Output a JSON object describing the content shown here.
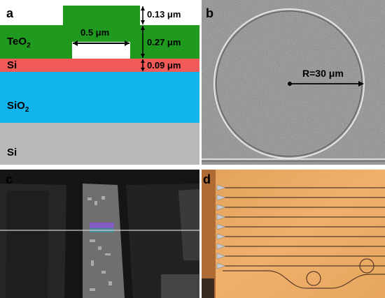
{
  "figure": {
    "panel_a": {
      "letter": "a",
      "layers": {
        "teo2": {
          "text": "TeO",
          "sub": "2",
          "color": "#1f9a1f"
        },
        "si_core": {
          "text": "Si",
          "color": "#f25a5a"
        },
        "sio2": {
          "text": "SiO",
          "sub": "2",
          "color": "#12b4ee"
        },
        "si_substrate": {
          "text": "Si",
          "color": "#b9b9b9"
        }
      },
      "dimensions": {
        "width": "0.5 μm",
        "t1": "0.13 μm",
        "t2": "0.27 μm",
        "t3": "0.09 μm"
      }
    },
    "panel_b": {
      "letter": "b",
      "radius_label": "R=30 μm"
    },
    "panel_c": {
      "letter": "c"
    },
    "panel_d": {
      "letter": "d",
      "waveguide_count": 10,
      "ring_count": 2
    }
  }
}
